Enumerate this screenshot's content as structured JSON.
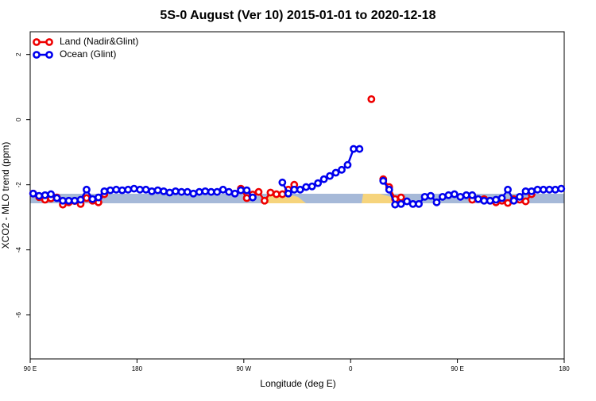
{
  "chart_data": {
    "type": "line",
    "title": "5S-0 August (Ver 10)   2015-01-01 to 2020-12-18",
    "x_label": "Longitude (deg E)",
    "y_label": "XCO2 - MLO trend (ppm)",
    "xlim": [
      90,
      540
    ],
    "ylim": [
      -7.35,
      2.7
    ],
    "xticks": [
      {
        "value": 90,
        "label": "90 E"
      },
      180,
      {
        "value": 270,
        "label": "90 W"
      },
      {
        "value": 360,
        "label": "0"
      },
      {
        "value": 450,
        "label": "90 E"
      },
      {
        "value": 540,
        "label": "180"
      }
    ],
    "yticks": [
      2,
      0,
      -2,
      -4,
      -6
    ],
    "legend": "top-left",
    "series": [
      {
        "name": "Land (Nadir&Glint)",
        "color": "#ee0000",
        "x": [
          92.5,
          97.5,
          102.5,
          107.5,
          112.5,
          117.5,
          122.5,
          127.5,
          132.5,
          137.5,
          142.5,
          147.5,
          152.5,
          157.5,
          162.5,
          167.5,
          172.5,
          177.5,
          182.5,
          187.5,
          192.5,
          197.5,
          202.5,
          207.5,
          212.5,
          217.5,
          222.5,
          227.5,
          232.5,
          237.5,
          242.5,
          247.5,
          252.5,
          257.5,
          262.5,
          267.5,
          272.5,
          277.5,
          282.5,
          287.5,
          292.5,
          297.5,
          302.5,
          307.5,
          312.5,
          317.5,
          322.5,
          327.5,
          332.5,
          337.5,
          342.5,
          347.5,
          352.5,
          357.5,
          362.5,
          367.5,
          372.5,
          377.5,
          382.5,
          387.5,
          392.5,
          397.5,
          402.5,
          407.5,
          412.5,
          417.5,
          422.5,
          427.5,
          432.5,
          437.5,
          442.5,
          447.5,
          452.5,
          457.5,
          462.5,
          467.5,
          472.5,
          477.5,
          482.5,
          487.5,
          492.5,
          497.5,
          502.5,
          507.5,
          512.5,
          517.5,
          522.5,
          527.5,
          532.5,
          537.5
        ],
        "values": [
          -2.27,
          -2.38,
          -2.46,
          -2.42,
          -2.39,
          -2.61,
          -2.54,
          -2.5,
          -2.59,
          -2.41,
          -2.49,
          -2.54,
          -2.29,
          null,
          null,
          null,
          null,
          null,
          null,
          null,
          null,
          null,
          null,
          null,
          null,
          null,
          null,
          null,
          null,
          null,
          null,
          null,
          null,
          null,
          null,
          -2.12,
          -2.41,
          -2.3,
          -2.22,
          -2.49,
          -2.24,
          -2.29,
          -2.29,
          -2.15,
          -2.0,
          null,
          null,
          null,
          null,
          null,
          null,
          null,
          null,
          null,
          null,
          null,
          null,
          0.63,
          null,
          -1.83,
          -2.07,
          -2.44,
          -2.39,
          null,
          null,
          null,
          null,
          null,
          null,
          null,
          null,
          null,
          null,
          null,
          -2.46,
          -2.44,
          -2.44,
          -2.49,
          -2.54,
          -2.49,
          -2.56,
          -2.44,
          -2.46,
          -2.51,
          -2.29,
          null,
          null,
          null,
          null,
          null
        ]
      },
      {
        "name": "Ocean (Glint)",
        "color": "#0000ee",
        "x": [
          92.5,
          97.5,
          102.5,
          107.5,
          112.5,
          117.5,
          122.5,
          127.5,
          132.5,
          137.5,
          142.5,
          147.5,
          152.5,
          157.5,
          162.5,
          167.5,
          172.5,
          177.5,
          182.5,
          187.5,
          192.5,
          197.5,
          202.5,
          207.5,
          212.5,
          217.5,
          222.5,
          227.5,
          232.5,
          237.5,
          242.5,
          247.5,
          252.5,
          257.5,
          262.5,
          267.5,
          272.5,
          277.5,
          282.5,
          287.5,
          292.5,
          297.5,
          302.5,
          307.5,
          312.5,
          317.5,
          322.5,
          327.5,
          332.5,
          337.5,
          342.5,
          347.5,
          352.5,
          357.5,
          362.5,
          367.5,
          372.5,
          377.5,
          382.5,
          387.5,
          392.5,
          397.5,
          402.5,
          407.5,
          412.5,
          417.5,
          422.5,
          427.5,
          432.5,
          437.5,
          442.5,
          447.5,
          452.5,
          457.5,
          462.5,
          467.5,
          472.5,
          477.5,
          482.5,
          487.5,
          492.5,
          497.5,
          502.5,
          507.5,
          512.5,
          517.5,
          522.5,
          527.5,
          532.5,
          537.5
        ],
        "values": [
          -2.27,
          -2.34,
          -2.32,
          -2.29,
          -2.41,
          -2.49,
          -2.49,
          -2.49,
          -2.46,
          -2.15,
          -2.44,
          -2.39,
          -2.2,
          -2.17,
          -2.15,
          -2.17,
          -2.15,
          -2.12,
          -2.15,
          -2.15,
          -2.2,
          -2.17,
          -2.2,
          -2.24,
          -2.2,
          -2.22,
          -2.22,
          -2.27,
          -2.22,
          -2.2,
          -2.22,
          -2.22,
          -2.15,
          -2.22,
          -2.27,
          -2.17,
          -2.17,
          -2.39,
          null,
          null,
          null,
          null,
          -1.93,
          -2.27,
          -2.15,
          -2.15,
          -2.07,
          -2.05,
          -1.95,
          -1.83,
          -1.73,
          -1.63,
          -1.54,
          -1.39,
          -0.9,
          -0.9,
          null,
          null,
          null,
          -1.88,
          -2.15,
          -2.61,
          -2.59,
          -2.51,
          -2.59,
          -2.59,
          -2.37,
          -2.34,
          -2.54,
          -2.37,
          -2.32,
          -2.29,
          -2.37,
          -2.32,
          -2.32,
          -2.44,
          -2.49,
          -2.49,
          -2.46,
          -2.41,
          -2.15,
          -2.49,
          -2.37,
          -2.2,
          -2.2,
          -2.15,
          -2.15,
          -2.15,
          -2.15,
          -2.12
        ]
      }
    ]
  }
}
